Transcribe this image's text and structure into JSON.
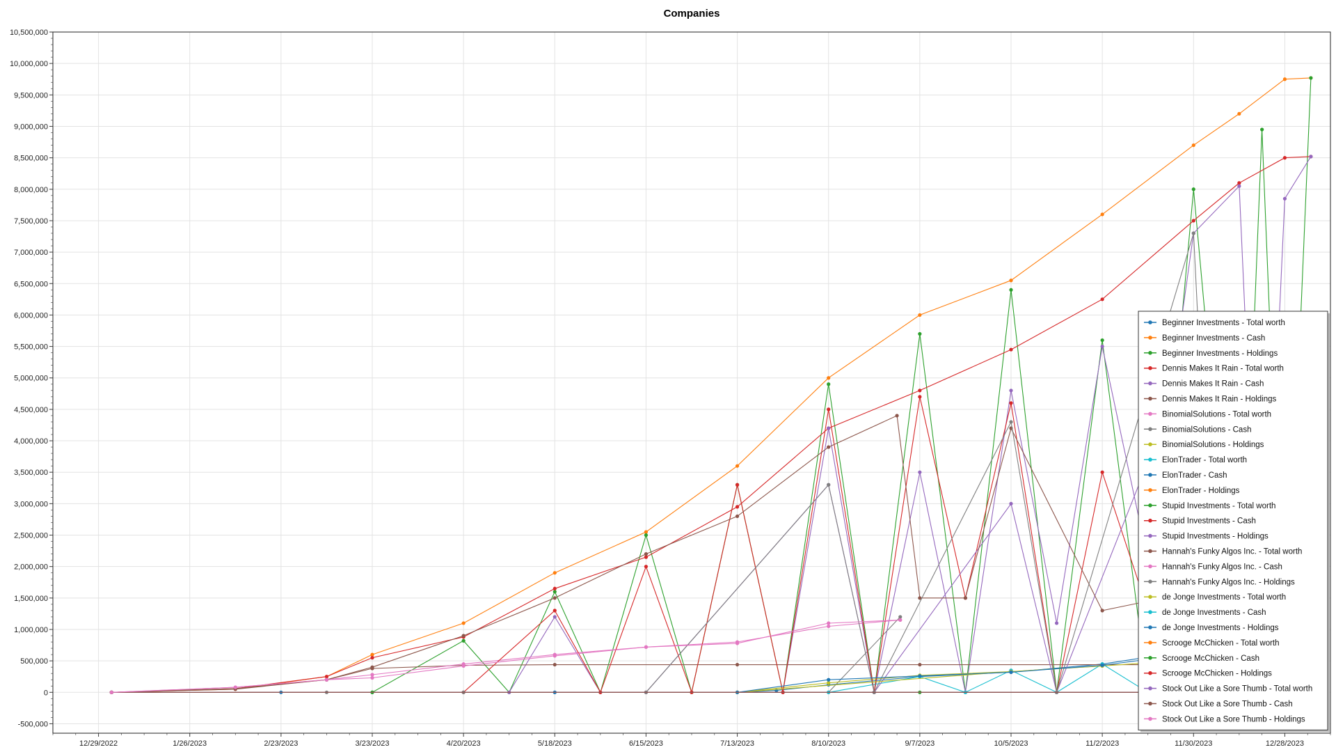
{
  "chart_data": {
    "type": "line",
    "title": "Companies",
    "xlabel": "",
    "ylabel": "",
    "grid": true,
    "legend_position": "bottom-right",
    "x_ticks": [
      "12/29/2022",
      "1/26/2023",
      "2/23/2023",
      "3/23/2023",
      "4/20/2023",
      "5/18/2023",
      "6/15/2023",
      "7/13/2023",
      "8/10/2023",
      "9/7/2023",
      "10/5/2023",
      "11/2/2023",
      "11/30/2023",
      "12/28/2023"
    ],
    "xlim": [
      "12/15/2022",
      "1/11/2024"
    ],
    "ylim": [
      -650000,
      10500000
    ],
    "y_ticks": [
      -500000,
      0,
      500000,
      1000000,
      1500000,
      2000000,
      2500000,
      3000000,
      3500000,
      4000000,
      4500000,
      5000000,
      5500000,
      6000000,
      6500000,
      7000000,
      7500000,
      8000000,
      8500000,
      9000000,
      9500000,
      10000000,
      10500000
    ],
    "y_tick_labels": [
      "-500,000",
      "0",
      "500,000",
      "1,000,000",
      "1,500,000",
      "2,000,000",
      "2,500,000",
      "3,000,000",
      "3,500,000",
      "4,000,000",
      "4,500,000",
      "5,000,000",
      "5,500,000",
      "6,000,000",
      "6,500,000",
      "7,000,000",
      "7,500,000",
      "8,000,000",
      "8,500,000",
      "9,000,000",
      "9,500,000",
      "10,000,000",
      "10,500,000"
    ],
    "series": [
      {
        "name": "Beginner Investments - Total worth",
        "color": "#1f77b4",
        "points": [
          [
            "1/2/2023",
            0
          ],
          [
            "2/23/2023",
            0
          ],
          [
            "3/23/2023",
            0
          ],
          [
            "5/18/2023",
            0
          ],
          [
            "7/13/2023",
            0
          ],
          [
            "7/25/2023",
            30000
          ],
          [
            "8/10/2023",
            120000
          ],
          [
            "9/7/2023",
            250000
          ],
          [
            "10/5/2023",
            320000
          ],
          [
            "11/2/2023",
            450000
          ],
          [
            "11/16/2023",
            560000
          ],
          [
            "11/30/2023",
            640000
          ]
        ]
      },
      {
        "name": "Beginner Investments - Cash",
        "color": "#ff7f0e",
        "points": [
          [
            "1/2/2023",
            0
          ],
          [
            "2/9/2023",
            50000
          ],
          [
            "3/9/2023",
            250000
          ],
          [
            "3/23/2023",
            600000
          ],
          [
            "4/20/2023",
            1100000
          ],
          [
            "5/18/2023",
            1900000
          ],
          [
            "6/15/2023",
            2550000
          ],
          [
            "7/13/2023",
            3600000
          ],
          [
            "8/10/2023",
            5000000
          ],
          [
            "9/7/2023",
            6000000
          ],
          [
            "10/5/2023",
            6550000
          ],
          [
            "11/2/2023",
            7600000
          ],
          [
            "11/30/2023",
            8700000
          ],
          [
            "12/14/2023",
            9200000
          ],
          [
            "12/28/2023",
            9750000
          ],
          [
            "1/5/2024",
            9770000
          ]
        ]
      },
      {
        "name": "Beginner Investments - Holdings",
        "color": "#2ca02c",
        "points": [
          [
            "1/2/2023",
            0
          ],
          [
            "3/23/2023",
            0
          ],
          [
            "4/20/2023",
            820000
          ],
          [
            "5/4/2023",
            0
          ],
          [
            "5/18/2023",
            1600000
          ],
          [
            "6/1/2023",
            0
          ],
          [
            "6/15/2023",
            2500000
          ],
          [
            "6/29/2023",
            0
          ],
          [
            "7/13/2023",
            3300000
          ],
          [
            "7/27/2023",
            0
          ],
          [
            "8/10/2023",
            4900000
          ],
          [
            "8/24/2023",
            0
          ],
          [
            "9/7/2023",
            5700000
          ],
          [
            "9/21/2023",
            0
          ],
          [
            "10/5/2023",
            6400000
          ],
          [
            "10/19/2023",
            0
          ],
          [
            "11/2/2023",
            5600000
          ],
          [
            "11/16/2023",
            0
          ],
          [
            "11/30/2023",
            8000000
          ],
          [
            "12/14/2023",
            0
          ],
          [
            "12/21/2023",
            8950000
          ],
          [
            "12/28/2023",
            0
          ],
          [
            "1/5/2024",
            9770000
          ]
        ]
      },
      {
        "name": "Dennis Makes It Rain - Total worth",
        "color": "#d62728",
        "points": [
          [
            "1/2/2023",
            0
          ],
          [
            "2/9/2023",
            60000
          ],
          [
            "3/9/2023",
            250000
          ],
          [
            "3/23/2023",
            550000
          ],
          [
            "4/20/2023",
            880000
          ],
          [
            "5/18/2023",
            1650000
          ],
          [
            "6/15/2023",
            2150000
          ],
          [
            "7/13/2023",
            2950000
          ],
          [
            "8/10/2023",
            4200000
          ],
          [
            "9/7/2023",
            4800000
          ],
          [
            "10/5/2023",
            5450000
          ],
          [
            "11/2/2023",
            6250000
          ],
          [
            "11/30/2023",
            7500000
          ],
          [
            "12/14/2023",
            8100000
          ],
          [
            "12/28/2023",
            8500000
          ],
          [
            "1/5/2024",
            8520000
          ]
        ]
      },
      {
        "name": "Dennis Makes It Rain - Cash",
        "color": "#9467bd",
        "points": [
          [
            "1/2/2023",
            0
          ],
          [
            "5/4/2023",
            0
          ],
          [
            "5/18/2023",
            1200000
          ],
          [
            "6/1/2023",
            0
          ],
          [
            "7/27/2023",
            0
          ],
          [
            "8/10/2023",
            4200000
          ],
          [
            "8/24/2023",
            0
          ],
          [
            "9/7/2023",
            3500000
          ],
          [
            "9/21/2023",
            0
          ],
          [
            "10/5/2023",
            4800000
          ],
          [
            "10/19/2023",
            1100000
          ],
          [
            "11/2/2023",
            5500000
          ],
          [
            "11/16/2023",
            2100000
          ],
          [
            "11/30/2023",
            7300000
          ],
          [
            "12/14/2023",
            8050000
          ],
          [
            "12/21/2023",
            0
          ],
          [
            "12/28/2023",
            7850000
          ],
          [
            "1/5/2024",
            8520000
          ]
        ]
      },
      {
        "name": "Dennis Makes It Rain - Holdings",
        "color": "#8c564b",
        "points": [
          [
            "1/2/2023",
            0
          ],
          [
            "2/9/2023",
            50000
          ],
          [
            "3/9/2023",
            200000
          ],
          [
            "3/23/2023",
            380000
          ],
          [
            "4/20/2023",
            430000
          ],
          [
            "5/18/2023",
            440000
          ],
          [
            "7/13/2023",
            440000
          ],
          [
            "9/7/2023",
            440000
          ],
          [
            "11/2/2023",
            440000
          ],
          [
            "11/30/2023",
            440000
          ],
          [
            "12/28/2023",
            440000
          ]
        ]
      },
      {
        "name": "BinomialSolutions - Total worth",
        "color": "#e377c2",
        "points": [
          [
            "1/2/2023",
            0
          ],
          [
            "2/9/2023",
            80000
          ],
          [
            "3/9/2023",
            200000
          ],
          [
            "3/23/2023",
            280000
          ],
          [
            "4/20/2023",
            450000
          ],
          [
            "5/18/2023",
            600000
          ],
          [
            "6/15/2023",
            720000
          ],
          [
            "7/13/2023",
            800000
          ],
          [
            "8/10/2023",
            1050000
          ],
          [
            "9/1/2023",
            1150000
          ]
        ]
      },
      {
        "name": "BinomialSolutions - Cash",
        "color": "#7f7f7f",
        "points": [
          [
            "1/2/2023",
            0
          ],
          [
            "3/9/2023",
            0
          ],
          [
            "4/20/2023",
            0
          ],
          [
            "6/15/2023",
            0
          ],
          [
            "8/10/2023",
            0
          ],
          [
            "9/1/2023",
            1200000
          ]
        ]
      },
      {
        "name": "BinomialSolutions - Holdings",
        "color": "#bcbd22",
        "points": [
          [
            "1/2/2023",
            0
          ],
          [
            "7/13/2023",
            0
          ],
          [
            "8/10/2023",
            150000
          ],
          [
            "9/7/2023",
            270000
          ],
          [
            "10/5/2023",
            330000
          ],
          [
            "11/2/2023",
            420000
          ],
          [
            "11/30/2023",
            520000
          ]
        ]
      },
      {
        "name": "ElonTrader - Total worth",
        "color": "#17becf",
        "points": [
          [
            "1/2/2023",
            0
          ],
          [
            "7/13/2023",
            0
          ],
          [
            "8/10/2023",
            0
          ],
          [
            "9/7/2023",
            250000
          ],
          [
            "9/21/2023",
            0
          ],
          [
            "10/5/2023",
            350000
          ],
          [
            "10/19/2023",
            0
          ],
          [
            "11/2/2023",
            450000
          ],
          [
            "11/16/2023",
            0
          ],
          [
            "11/30/2023",
            500000
          ]
        ]
      },
      {
        "name": "ElonTrader - Cash",
        "color": "#1f77b4",
        "points": [
          [
            "1/2/2023",
            0
          ],
          [
            "5/18/2023",
            0
          ],
          [
            "7/13/2023",
            0
          ],
          [
            "11/30/2023",
            0
          ],
          [
            "12/28/2023",
            0
          ]
        ]
      },
      {
        "name": "ElonTrader - Holdings",
        "color": "#ff7f0e",
        "points": [
          [
            "1/2/2023",
            0
          ],
          [
            "7/13/2023",
            0
          ],
          [
            "12/28/2023",
            0
          ]
        ]
      },
      {
        "name": "Stupid Investments - Total worth",
        "color": "#2ca02c",
        "points": [
          [
            "1/2/2023",
            0
          ],
          [
            "3/23/2023",
            0
          ],
          [
            "6/15/2023",
            0
          ],
          [
            "9/7/2023",
            0
          ],
          [
            "12/28/2023",
            0
          ]
        ]
      },
      {
        "name": "Stupid Investments - Cash",
        "color": "#d62728",
        "points": [
          [
            "1/2/2023",
            0
          ],
          [
            "4/20/2023",
            0
          ],
          [
            "5/18/2023",
            1300000
          ],
          [
            "6/1/2023",
            0
          ],
          [
            "6/15/2023",
            2000000
          ],
          [
            "6/29/2023",
            0
          ],
          [
            "7/13/2023",
            3300000
          ],
          [
            "7/27/2023",
            0
          ],
          [
            "8/10/2023",
            4500000
          ],
          [
            "8/24/2023",
            0
          ],
          [
            "9/7/2023",
            4700000
          ],
          [
            "9/21/2023",
            1500000
          ],
          [
            "10/5/2023",
            4600000
          ],
          [
            "10/19/2023",
            0
          ],
          [
            "11/2/2023",
            3500000
          ],
          [
            "11/16/2023",
            1300000
          ],
          [
            "11/30/2023",
            1800000
          ]
        ]
      },
      {
        "name": "Stupid Investments - Holdings",
        "color": "#9467bd",
        "points": [
          [
            "1/2/2023",
            0
          ],
          [
            "6/15/2023",
            0
          ],
          [
            "8/10/2023",
            3300000
          ],
          [
            "8/24/2023",
            0
          ],
          [
            "10/5/2023",
            3000000
          ],
          [
            "10/19/2023",
            0
          ],
          [
            "11/30/2023",
            5500000
          ]
        ]
      },
      {
        "name": "Hannah's Funky Algos Inc. - Total worth",
        "color": "#8c564b",
        "points": [
          [
            "1/2/2023",
            0
          ],
          [
            "2/9/2023",
            60000
          ],
          [
            "3/9/2023",
            200000
          ],
          [
            "3/23/2023",
            400000
          ],
          [
            "4/20/2023",
            900000
          ],
          [
            "5/18/2023",
            1500000
          ],
          [
            "6/15/2023",
            2200000
          ],
          [
            "7/13/2023",
            2800000
          ],
          [
            "8/10/2023",
            3900000
          ],
          [
            "8/31/2023",
            4400000
          ],
          [
            "9/7/2023",
            1500000
          ],
          [
            "9/21/2023",
            1500000
          ],
          [
            "10/5/2023",
            4200000
          ],
          [
            "11/2/2023",
            1300000
          ],
          [
            "11/30/2023",
            1600000
          ]
        ]
      },
      {
        "name": "Hannah's Funky Algos Inc. - Cash",
        "color": "#e377c2",
        "points": [
          [
            "1/2/2023",
            0
          ],
          [
            "6/15/2023",
            0
          ],
          [
            "12/28/2023",
            0
          ]
        ]
      },
      {
        "name": "Hannah's Funky Algos Inc. - Holdings",
        "color": "#7f7f7f",
        "points": [
          [
            "1/2/2023",
            0
          ],
          [
            "4/20/2023",
            0
          ],
          [
            "6/15/2023",
            0
          ],
          [
            "8/10/2023",
            3300000
          ],
          [
            "8/24/2023",
            0
          ],
          [
            "10/5/2023",
            4300000
          ],
          [
            "10/19/2023",
            0
          ],
          [
            "11/30/2023",
            7300000
          ],
          [
            "12/7/2023",
            0
          ]
        ]
      },
      {
        "name": "de Jonge Investments - Total worth",
        "color": "#bcbd22",
        "points": [
          [
            "1/2/2023",
            0
          ],
          [
            "7/13/2023",
            0
          ],
          [
            "10/5/2023",
            330000
          ],
          [
            "11/2/2023",
            420000
          ]
        ]
      },
      {
        "name": "de Jonge Investments - Cash",
        "color": "#17becf",
        "points": [
          [
            "1/2/2023",
            0
          ],
          [
            "11/30/2023",
            0
          ]
        ]
      },
      {
        "name": "de Jonge Investments - Holdings",
        "color": "#1f77b4",
        "points": [
          [
            "1/2/2023",
            0
          ],
          [
            "7/13/2023",
            0
          ],
          [
            "8/10/2023",
            200000
          ],
          [
            "9/7/2023",
            260000
          ],
          [
            "10/5/2023",
            320000
          ],
          [
            "11/2/2023",
            430000
          ],
          [
            "11/30/2023",
            620000
          ]
        ]
      },
      {
        "name": "Scrooge McChicken - Total worth",
        "color": "#ff7f0e",
        "points": [
          [
            "1/2/2023",
            0
          ],
          [
            "12/28/2023",
            0
          ]
        ]
      },
      {
        "name": "Scrooge McChicken - Cash",
        "color": "#2ca02c",
        "points": [
          [
            "1/2/2023",
            0
          ],
          [
            "12/28/2023",
            0
          ]
        ]
      },
      {
        "name": "Scrooge McChicken - Holdings",
        "color": "#d62728",
        "points": [
          [
            "1/2/2023",
            0
          ],
          [
            "12/28/2023",
            0
          ]
        ]
      },
      {
        "name": "Stock Out Like a Sore Thumb - Total worth",
        "color": "#9467bd",
        "points": [
          [
            "1/2/2023",
            0
          ],
          [
            "12/28/2023",
            0
          ]
        ]
      },
      {
        "name": "Stock Out Like a Sore Thumb - Cash",
        "color": "#8c564b",
        "points": [
          [
            "1/2/2023",
            0
          ],
          [
            "12/28/2023",
            0
          ]
        ]
      },
      {
        "name": "Stock Out Like a Sore Thumb - Holdings",
        "color": "#e377c2",
        "points": [
          [
            "1/2/2023",
            0
          ],
          [
            "2/9/2023",
            80000
          ],
          [
            "3/9/2023",
            200000
          ],
          [
            "3/23/2023",
            230000
          ],
          [
            "4/20/2023",
            420000
          ],
          [
            "5/18/2023",
            580000
          ],
          [
            "6/15/2023",
            720000
          ],
          [
            "7/13/2023",
            780000
          ],
          [
            "8/10/2023",
            1100000
          ],
          [
            "9/1/2023",
            1150000
          ]
        ]
      }
    ]
  }
}
